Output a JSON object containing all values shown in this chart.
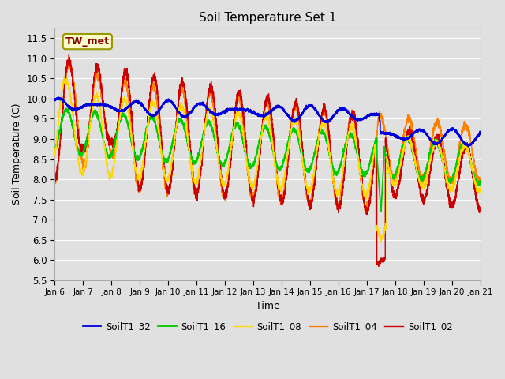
{
  "title": "Soil Temperature Set 1",
  "xlabel": "Time",
  "ylabel": "Soil Temperature (C)",
  "ylim": [
    5.5,
    11.75
  ],
  "annotation_text": "TW_met",
  "annotation_color": "#8B0000",
  "annotation_bg": "#FFFFCC",
  "annotation_edge": "#999900",
  "bg_color": "#E0E0E0",
  "legend_entries": [
    "SoilT1_02",
    "SoilT1_04",
    "SoilT1_08",
    "SoilT1_16",
    "SoilT1_32"
  ],
  "line_colors": [
    "#CC0000",
    "#FF8000",
    "#FFD700",
    "#00CC00",
    "#0000DD"
  ],
  "x_tick_labels": [
    "Jan 6",
    "Jan 7",
    "Jan 8",
    "Jan 9",
    "Jan 10",
    "Jan 11",
    "Jan 12",
    "Jan 13",
    "Jan 14",
    "Jan 15",
    "Jan 16",
    "Jan 17",
    "Jan 18",
    "Jan 19",
    "Jan 20",
    "Jan 21"
  ],
  "grid_color": "#FFFFFF",
  "linewidth": 1.0
}
